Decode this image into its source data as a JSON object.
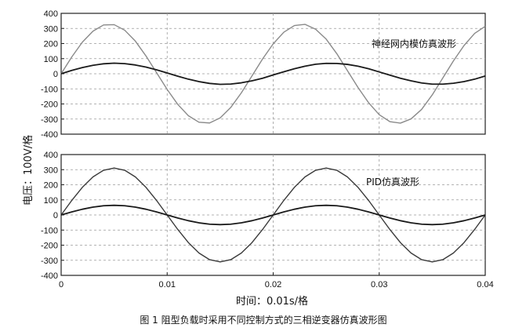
{
  "chart_data": [
    {
      "type": "line",
      "panel": "top",
      "annotation": "神经网内模仿真波形",
      "xlim": [
        0,
        0.04
      ],
      "ylim": [
        -400,
        400
      ],
      "yticks": [
        400,
        300,
        200,
        100,
        0,
        -100,
        -200,
        -300,
        -400
      ],
      "grid": true,
      "series": [
        {
          "values": [
            0,
            111,
            209,
            282,
            323,
            325,
            288,
            216,
            118,
            7,
            -104,
            -203,
            -278,
            -321,
            -326,
            -292,
            -223,
            -126,
            -14,
            98,
            198,
            275,
            319,
            327,
            295,
            229,
            133,
            21,
            -91,
            -192,
            -271,
            -317,
            -327,
            -299,
            -236,
            -140,
            -28,
            85,
            187,
            267,
            314
          ],
          "x": [
            0,
            0.001,
            0.002,
            0.003,
            0.004,
            0.005,
            0.006,
            0.007,
            0.008,
            0.009,
            0.01,
            0.011,
            0.012,
            0.013,
            0.014,
            0.015,
            0.016,
            0.017,
            0.018,
            0.019,
            0.02,
            0.021,
            0.022,
            0.023,
            0.024,
            0.025,
            0.026,
            0.027,
            0.028,
            0.029,
            0.03,
            0.031,
            0.032,
            0.033,
            0.034,
            0.035,
            0.036,
            0.037,
            0.038,
            0.039,
            0.04
          ],
          "color": "#8a8a8a"
        },
        {
          "values": [
            0,
            22,
            41,
            56,
            66,
            70,
            67,
            58,
            44,
            26,
            5,
            -16,
            -36,
            -52,
            -64,
            -70,
            -68,
            -60,
            -47,
            -30,
            -8,
            13,
            33,
            50,
            63,
            69,
            68,
            62,
            50,
            33,
            12,
            -9,
            -30,
            -47,
            -61,
            -69,
            -69,
            -63,
            -52,
            -36,
            -15
          ],
          "x": [
            0,
            0.001,
            0.002,
            0.003,
            0.004,
            0.005,
            0.006,
            0.007,
            0.008,
            0.009,
            0.01,
            0.011,
            0.012,
            0.013,
            0.014,
            0.015,
            0.016,
            0.017,
            0.018,
            0.019,
            0.02,
            0.021,
            0.022,
            0.023,
            0.024,
            0.025,
            0.026,
            0.027,
            0.028,
            0.029,
            0.03,
            0.031,
            0.032,
            0.033,
            0.034,
            0.035,
            0.036,
            0.037,
            0.038,
            0.039,
            0.04
          ],
          "color": "#1a1a1a"
        }
      ]
    },
    {
      "type": "line",
      "panel": "bottom",
      "annotation": "PID仿真波形",
      "xlim": [
        0,
        0.04
      ],
      "ylim": [
        -400,
        400
      ],
      "yticks": [
        400,
        300,
        200,
        100,
        0,
        -100,
        -200,
        -300,
        -400
      ],
      "xticks": [
        0,
        0.01,
        0.02,
        0.03,
        0.04
      ],
      "xtick_labels": [
        "0",
        "0.01",
        "0.02",
        "0.03",
        "0.04"
      ],
      "grid": true,
      "series": [
        {
          "values": [
            0,
            96,
            183,
            252,
            296,
            311,
            296,
            252,
            183,
            96,
            0,
            -96,
            -183,
            -252,
            -296,
            -311,
            -296,
            -252,
            -183,
            -96,
            0,
            96,
            183,
            252,
            296,
            311,
            296,
            252,
            183,
            96,
            0,
            -96,
            -183,
            -252,
            -296,
            -311,
            -296,
            -252,
            -183,
            -96,
            0
          ],
          "x": [
            0,
            0.001,
            0.002,
            0.003,
            0.004,
            0.005,
            0.006,
            0.007,
            0.008,
            0.009,
            0.01,
            0.011,
            0.012,
            0.013,
            0.014,
            0.015,
            0.016,
            0.017,
            0.018,
            0.019,
            0.02,
            0.021,
            0.022,
            0.023,
            0.024,
            0.025,
            0.026,
            0.027,
            0.028,
            0.029,
            0.03,
            0.031,
            0.032,
            0.033,
            0.034,
            0.035,
            0.036,
            0.037,
            0.038,
            0.039,
            0.04
          ],
          "color": "#3a3a3a"
        },
        {
          "values": [
            0,
            20,
            38,
            52,
            61,
            64,
            61,
            52,
            38,
            20,
            0,
            -20,
            -38,
            -52,
            -61,
            -64,
            -61,
            -52,
            -38,
            -20,
            0,
            20,
            38,
            52,
            61,
            64,
            61,
            52,
            38,
            20,
            0,
            -20,
            -38,
            -52,
            -61,
            -64,
            -61,
            -52,
            -38,
            -20,
            0
          ],
          "x": [
            0,
            0.001,
            0.002,
            0.003,
            0.004,
            0.005,
            0.006,
            0.007,
            0.008,
            0.009,
            0.01,
            0.011,
            0.012,
            0.013,
            0.014,
            0.015,
            0.016,
            0.017,
            0.018,
            0.019,
            0.02,
            0.021,
            0.022,
            0.023,
            0.024,
            0.025,
            0.026,
            0.027,
            0.028,
            0.029,
            0.03,
            0.031,
            0.032,
            0.033,
            0.034,
            0.035,
            0.036,
            0.037,
            0.038,
            0.039,
            0.04
          ],
          "color": "#1a1a1a"
        }
      ]
    }
  ],
  "ylabel": "电压：100V/格",
  "xlabel": "时间：0.01s/格",
  "caption": "图 1 阻型负载时采用不同控制方式的三相逆变器仿真波形图"
}
